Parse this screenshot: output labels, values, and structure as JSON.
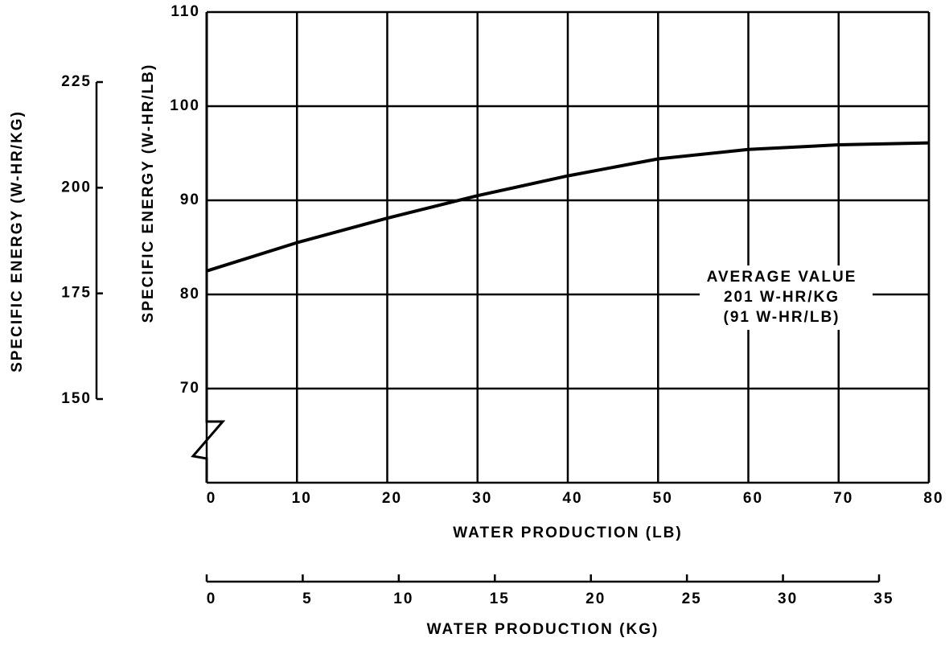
{
  "chart_data": {
    "type": "line",
    "x": [
      0,
      10,
      20,
      30,
      40,
      50,
      60,
      70,
      80
    ],
    "values": [
      82.5,
      85.5,
      88.1,
      90.5,
      92.6,
      94.4,
      95.4,
      95.9,
      96.1
    ],
    "color": "#000000",
    "xlim": [
      0,
      80
    ],
    "xticks": [
      0,
      10,
      20,
      30,
      40,
      50,
      60,
      70,
      80
    ],
    "ylim": [
      60,
      110
    ],
    "yticks": [
      70,
      80,
      90,
      100,
      110
    ],
    "y2lim": [
      150,
      225
    ],
    "y2ticks": [
      150,
      175,
      200,
      225
    ],
    "x2lim": [
      0,
      35
    ],
    "x2ticks": [
      0,
      5,
      10,
      15,
      20,
      25,
      30,
      35
    ],
    "grid": true,
    "xlabel": "WATER PRODUCTION (LB)",
    "x2label": "WATER PRODUCTION (KG)",
    "ylabel": "SPECIFIC ENERGY (W-HR/LB)",
    "y2label": "SPECIFIC ENERGY (W-HR/KG)",
    "annotations": [
      "AVERAGE VALUE",
      "201 W-HR/KG",
      "(91 W-HR/LB)"
    ]
  }
}
